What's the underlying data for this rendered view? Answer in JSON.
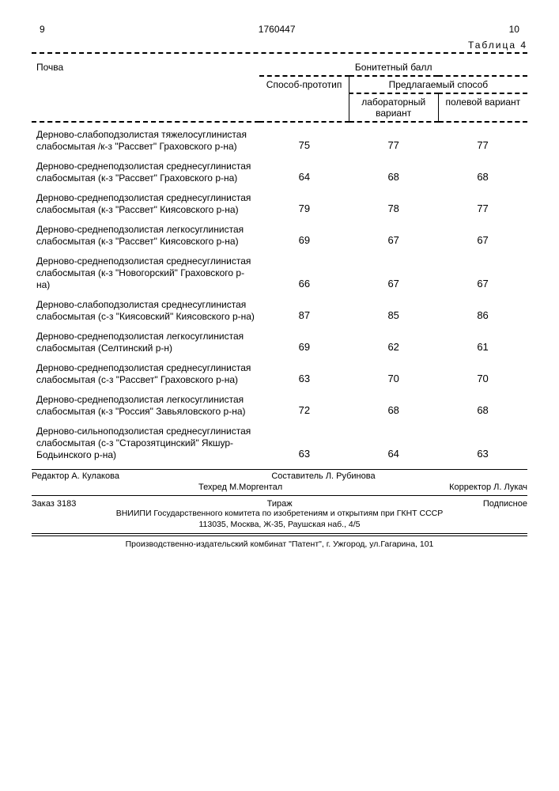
{
  "header": {
    "left_num": "9",
    "center_num": "1760447",
    "right_num": "10",
    "table_label": "Таблица 4"
  },
  "table": {
    "col_soil": "Почва",
    "col_main": "Бонитетный балл",
    "col_proto": "Способ-прототип",
    "col_proposed": "Предлагаемый способ",
    "col_lab": "лабораторный вариант",
    "col_field": "полевой вариант",
    "rows": [
      {
        "soil": "Дерново-слабоподзолистая тяжелосуглинистая слабосмытая /к-з \"Рассвет\" Граховского р-на)",
        "proto": "75",
        "lab": "77",
        "field": "77"
      },
      {
        "soil": "Дерново-среднеподзолистая среднесуглинистая слабосмытая (к-з \"Рассвет\" Граховского р-на)",
        "proto": "64",
        "lab": "68",
        "field": "68"
      },
      {
        "soil": "Дерново-среднеподзолистая среднесуглинистая слабосмытая (к-з \"Рассвет\" Киясовского р-на)",
        "proto": "79",
        "lab": "78",
        "field": "77"
      },
      {
        "soil": "Дерново-среднеподзолистая легкосуглинистая слабосмытая (к-з \"Рассвет\" Киясовского р-на)",
        "proto": "69",
        "lab": "67",
        "field": "67"
      },
      {
        "soil": "Дерново-среднеподзолистая среднесуглинистая слабосмытая (к-з \"Новогорский\" Граховского р-на)",
        "proto": "66",
        "lab": "67",
        "field": "67"
      },
      {
        "soil": "Дерново-слабоподзолистая среднесуглинистая слабосмытая (с-з \"Киясовский\" Киясовского р-на)",
        "proto": "87",
        "lab": "85",
        "field": "86"
      },
      {
        "soil": "Дерново-среднеподзолистая легкосуглинистая слабосмытая (Селтинский р-н)",
        "proto": "69",
        "lab": "62",
        "field": "61"
      },
      {
        "soil": "Дерново-среднеподзолистая среднесуглинистая слабосмытая (с-з \"Рассвет\" Граховского р-на)",
        "proto": "63",
        "lab": "70",
        "field": "70"
      },
      {
        "soil": "Дерново-среднеподзолистая легкосуглинистая слабосмытая (к-з \"Россия\" Завьяловского р-на)",
        "proto": "72",
        "lab": "68",
        "field": "68"
      },
      {
        "soil": "Дерново-сильноподзолистая среднесуглинистая слабосмытая (с-з \"Старозятцинский\" Якшур-Бодьинского р-на)",
        "proto": "63",
        "lab": "64",
        "field": "63"
      }
    ]
  },
  "footer": {
    "editor": "Редактор А. Кулакова",
    "compiler": "Составитель Л. Рубинова",
    "techred": "Техред М.Моргентал",
    "corrector": "Корректор Л. Лукач",
    "order": "Заказ 3183",
    "tirage": "Тираж",
    "subscript": "Подписное",
    "org1": "ВНИИПИ Государственного комитета по изобретениям и открытиям при ГКНТ СССР",
    "org2": "113035, Москва, Ж-35, Раушская наб., 4/5",
    "press": "Производственно-издательский комбинат \"Патент\", г. Ужгород, ул.Гагарина, 101"
  }
}
